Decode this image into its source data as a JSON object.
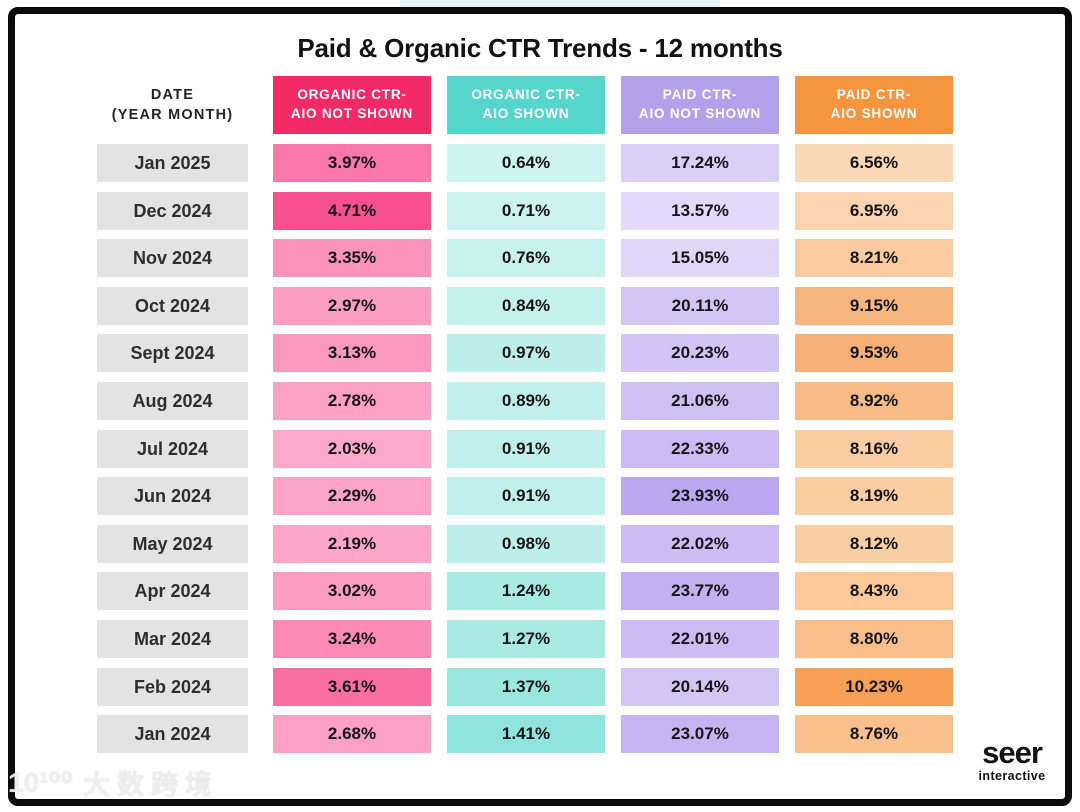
{
  "title": "Paid & Organic CTR Trends - 12 months",
  "table": {
    "date_header": {
      "line1": "DATE",
      "line2": "(YEAR MONTH)"
    },
    "columns": [
      {
        "line1": "ORGANIC CTR-",
        "line2": "AIO NOT SHOWN",
        "color": "#f42a66"
      },
      {
        "line1": "ORGANIC CTR-",
        "line2": "AIO SHOWN",
        "color": "#54d6cd"
      },
      {
        "line1": "PAID CTR-",
        "line2": "AIO NOT SHOWN",
        "color": "#b2a1ea"
      },
      {
        "line1": "PAID CTR-",
        "line2": "AIO SHOWN",
        "color": "#f6953e"
      }
    ],
    "date_cell_bg": "#e4e3e4",
    "rows": [
      {
        "date": "Jan 2025",
        "cells": [
          {
            "v": "3.97%",
            "bg": "#fa78aa"
          },
          {
            "v": "0.64%",
            "bg": "#cdf4f0"
          },
          {
            "v": "17.24%",
            "bg": "#dad0f7"
          },
          {
            "v": "6.56%",
            "bg": "#fbd8b6"
          }
        ]
      },
      {
        "date": "Dec 2024",
        "cells": [
          {
            "v": "4.71%",
            "bg": "#f7508e"
          },
          {
            "v": "0.71%",
            "bg": "#cbf3ef"
          },
          {
            "v": "13.57%",
            "bg": "#e2daf9"
          },
          {
            "v": "6.95%",
            "bg": "#fbd4af"
          }
        ]
      },
      {
        "date": "Nov 2024",
        "cells": [
          {
            "v": "3.35%",
            "bg": "#fb93bb"
          },
          {
            "v": "0.76%",
            "bg": "#c8f2ee"
          },
          {
            "v": "15.05%",
            "bg": "#dfd6f8"
          },
          {
            "v": "8.21%",
            "bg": "#facba0"
          }
        ]
      },
      {
        "date": "Oct 2024",
        "cells": [
          {
            "v": "2.97%",
            "bg": "#fc9dc2"
          },
          {
            "v": "0.84%",
            "bg": "#c5f1ec"
          },
          {
            "v": "20.11%",
            "bg": "#d3c6f5"
          },
          {
            "v": "9.15%",
            "bg": "#f8b67e"
          }
        ]
      },
      {
        "date": "Sept 2024",
        "cells": [
          {
            "v": "3.13%",
            "bg": "#fb98be"
          },
          {
            "v": "0.97%",
            "bg": "#bdefea"
          },
          {
            "v": "20.23%",
            "bg": "#d2c5f5"
          },
          {
            "v": "9.53%",
            "bg": "#f8b076"
          }
        ]
      },
      {
        "date": "Aug 2024",
        "cells": [
          {
            "v": "2.78%",
            "bg": "#fca0c4"
          },
          {
            "v": "0.89%",
            "bg": "#c1f0ec"
          },
          {
            "v": "21.06%",
            "bg": "#cfc0f4"
          },
          {
            "v": "8.92%",
            "bg": "#f9bb86"
          }
        ]
      },
      {
        "date": "Jul 2024",
        "cells": [
          {
            "v": "2.03%",
            "bg": "#fda9cb"
          },
          {
            "v": "0.91%",
            "bg": "#c0f0eb"
          },
          {
            "v": "22.33%",
            "bg": "#cbbaf3"
          },
          {
            "v": "8.16%",
            "bg": "#facda3"
          }
        ]
      },
      {
        "date": "Jun 2024",
        "cells": [
          {
            "v": "2.29%",
            "bg": "#fca4c7"
          },
          {
            "v": "0.91%",
            "bg": "#c0f0eb"
          },
          {
            "v": "23.93%",
            "bg": "#bca7f0"
          },
          {
            "v": "8.19%",
            "bg": "#facda2"
          }
        ]
      },
      {
        "date": "May 2024",
        "cells": [
          {
            "v": "2.19%",
            "bg": "#fda6c9"
          },
          {
            "v": "0.98%",
            "bg": "#bcefe9"
          },
          {
            "v": "22.02%",
            "bg": "#cdbcf3"
          },
          {
            "v": "8.12%",
            "bg": "#facea4"
          }
        ]
      },
      {
        "date": "Apr 2024",
        "cells": [
          {
            "v": "3.02%",
            "bg": "#fb9cc1"
          },
          {
            "v": "1.24%",
            "bg": "#a8ebe4"
          },
          {
            "v": "23.77%",
            "bg": "#c3aff1"
          },
          {
            "v": "8.43%",
            "bg": "#fac899"
          }
        ]
      },
      {
        "date": "Mar 2024",
        "cells": [
          {
            "v": "3.24%",
            "bg": "#fb8bb5"
          },
          {
            "v": "1.27%",
            "bg": "#a6eae3"
          },
          {
            "v": "22.01%",
            "bg": "#cdbcf3"
          },
          {
            "v": "8.80%",
            "bg": "#f9bd8b"
          }
        ]
      },
      {
        "date": "Feb 2024",
        "cells": [
          {
            "v": "3.61%",
            "bg": "#f96fa2"
          },
          {
            "v": "1.37%",
            "bg": "#9ae7e0"
          },
          {
            "v": "20.14%",
            "bg": "#d3c6f5"
          },
          {
            "v": "10.23%",
            "bg": "#f7a055"
          }
        ]
      },
      {
        "date": "Jan 2024",
        "cells": [
          {
            "v": "2.68%",
            "bg": "#fca0c5"
          },
          {
            "v": "1.41%",
            "bg": "#8fe4dd"
          },
          {
            "v": "23.07%",
            "bg": "#c6b4f2"
          },
          {
            "v": "8.76%",
            "bg": "#f9bf8d"
          }
        ]
      }
    ]
  },
  "brand": {
    "name": "seer",
    "sub": "interactive"
  },
  "watermark": {
    "logo": "10¹⁰⁰",
    "text": "大数跨境"
  },
  "chart_data": {
    "type": "table",
    "title": "Paid & Organic CTR Trends - 12 months",
    "categories": [
      "Jan 2025",
      "Dec 2024",
      "Nov 2024",
      "Oct 2024",
      "Sept 2024",
      "Aug 2024",
      "Jul 2024",
      "Jun 2024",
      "May 2024",
      "Apr 2024",
      "Mar 2024",
      "Feb 2024",
      "Jan 2024"
    ],
    "series": [
      {
        "name": "Organic CTR - AIO Not Shown",
        "values": [
          3.97,
          4.71,
          3.35,
          2.97,
          3.13,
          2.78,
          2.03,
          2.29,
          2.19,
          3.02,
          3.24,
          3.61,
          2.68
        ]
      },
      {
        "name": "Organic CTR - AIO Shown",
        "values": [
          0.64,
          0.71,
          0.76,
          0.84,
          0.97,
          0.89,
          0.91,
          0.91,
          0.98,
          1.24,
          1.27,
          1.37,
          1.41
        ]
      },
      {
        "name": "Paid CTR - AIO Not Shown",
        "values": [
          17.24,
          13.57,
          15.05,
          20.11,
          20.23,
          21.06,
          22.33,
          23.93,
          22.02,
          23.77,
          22.01,
          20.14,
          23.07
        ]
      },
      {
        "name": "Paid CTR - AIO Shown",
        "values": [
          6.56,
          6.95,
          8.21,
          9.15,
          9.53,
          8.92,
          8.16,
          8.19,
          8.12,
          8.43,
          8.8,
          10.23,
          8.76
        ]
      }
    ],
    "unit": "%",
    "notes": "Cell background shading encodes value magnitude per column (darker = higher)"
  }
}
